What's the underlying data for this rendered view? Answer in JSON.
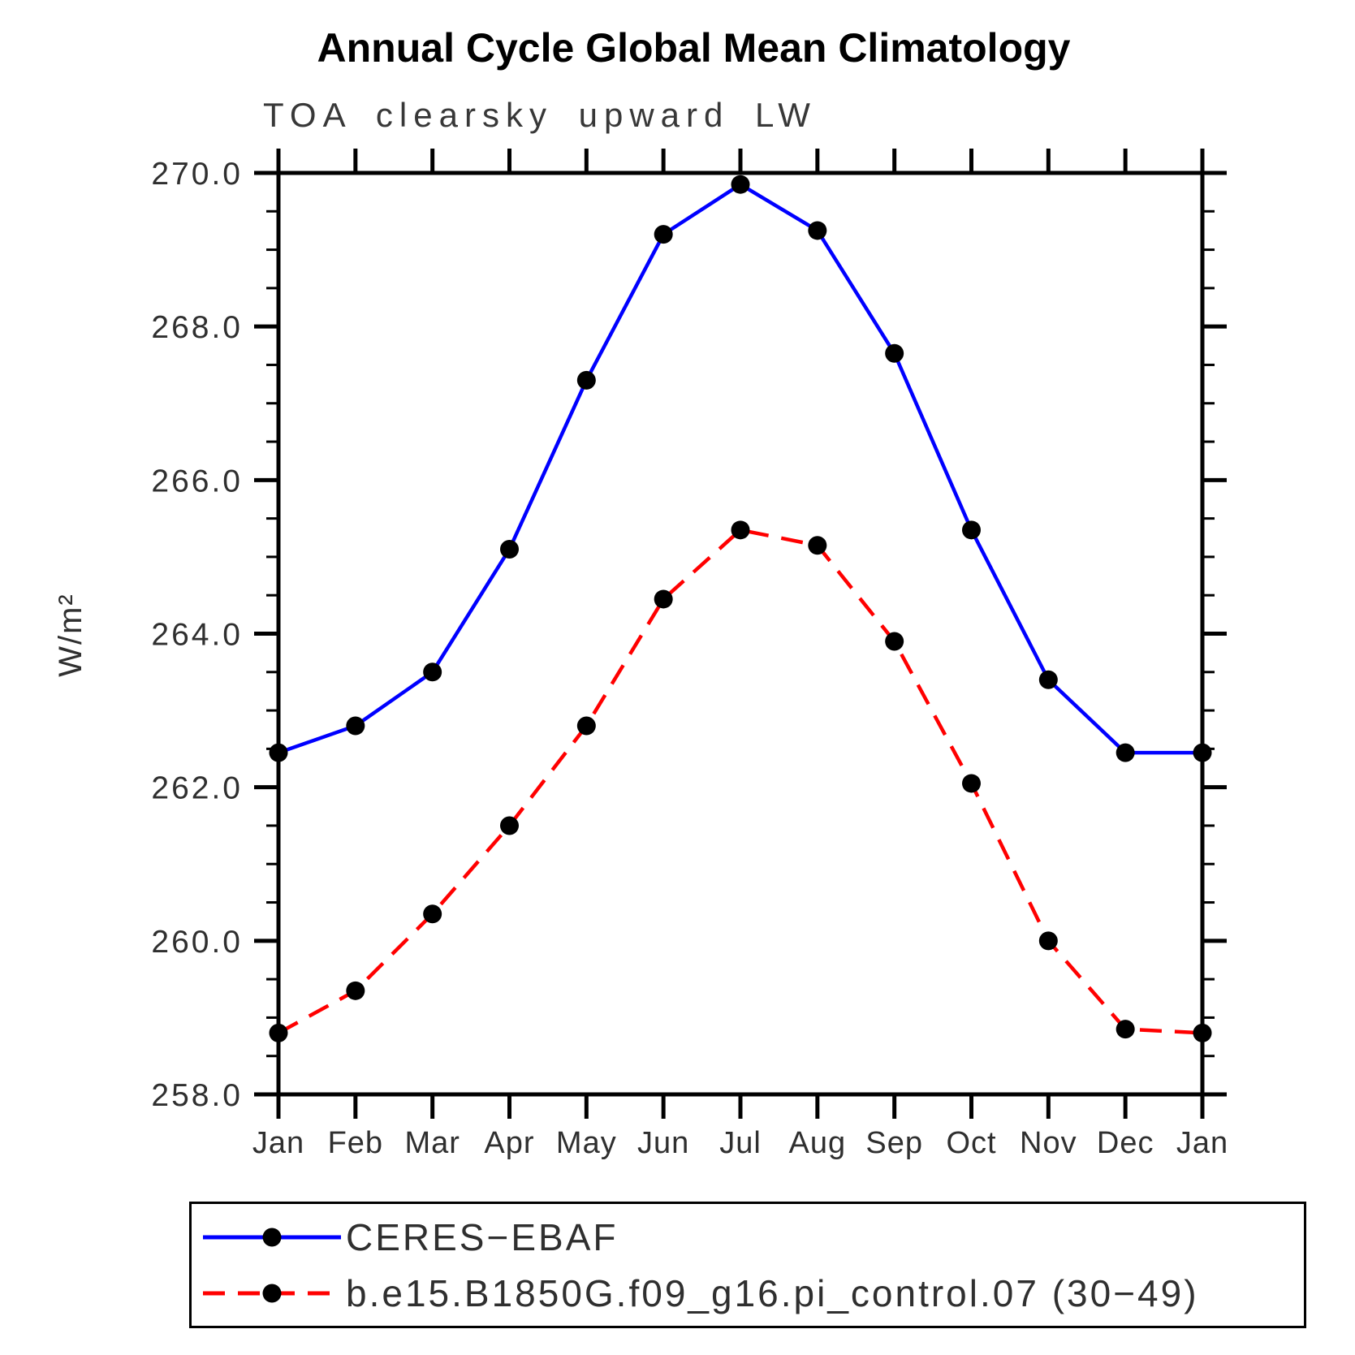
{
  "chart_data": {
    "type": "line",
    "title": "Annual Cycle Global Mean Climatology",
    "subtitle": "TOA clearsky upward LW",
    "ylabel": "W/m²",
    "xlabel": "",
    "categories": [
      "Jan",
      "Feb",
      "Mar",
      "Apr",
      "May",
      "Jun",
      "Jul",
      "Aug",
      "Sep",
      "Oct",
      "Nov",
      "Dec",
      "Jan"
    ],
    "ylim": [
      258.0,
      270.0
    ],
    "ytick_major_interval": 2.0,
    "ytick_minor_interval": 0.5,
    "ytick_labels": [
      "258.0",
      "260.0",
      "262.0",
      "264.0",
      "266.0",
      "268.0",
      "270.0"
    ],
    "grid": false,
    "legend_position": "boxed-bottom-left",
    "series": [
      {
        "name": "CERES−EBAF",
        "color": "#0000ff",
        "line_style": "solid",
        "marker": "filled-circle",
        "marker_color": "#000000",
        "values": [
          262.45,
          262.8,
          263.5,
          265.1,
          267.3,
          269.2,
          269.85,
          269.25,
          267.65,
          265.35,
          263.4,
          262.45,
          262.45
        ]
      },
      {
        "name": "b.e15.B1850G.f09_g16.pi_control.07 (30−49)",
        "color": "#ff0000",
        "line_style": "dashed",
        "marker": "filled-circle",
        "marker_color": "#000000",
        "values": [
          258.8,
          259.35,
          260.35,
          261.5,
          262.8,
          264.45,
          265.35,
          265.15,
          263.9,
          262.05,
          260.0,
          258.85,
          258.8
        ]
      }
    ]
  }
}
